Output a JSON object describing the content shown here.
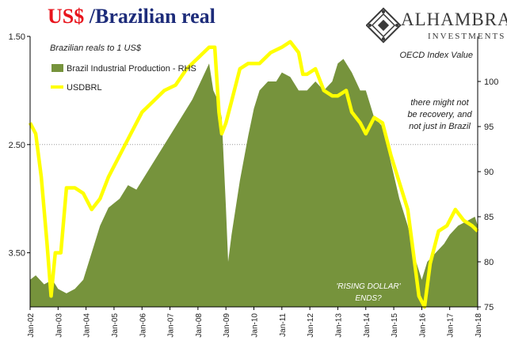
{
  "title": {
    "part1": "US$",
    "part2": " /Brazilian real"
  },
  "logo": {
    "name": "ALHAMBRA",
    "sub": "INVESTMENTS"
  },
  "chart_data": {
    "type": "area+line",
    "left_axis": {
      "label": "Brazilian reals to 1 US$",
      "inverted": true,
      "range": [
        1.5,
        4.0
      ],
      "ticks": [
        1.5,
        2.5,
        3.5
      ],
      "tick_labels": [
        "1.50",
        "2.50",
        "3.50"
      ]
    },
    "right_axis": {
      "label": "OECD Index Value",
      "range": [
        75,
        105
      ],
      "ticks": [
        75,
        80,
        85,
        90,
        95,
        100
      ],
      "tick_labels": [
        "75",
        "80",
        "85",
        "90",
        "95",
        "100"
      ]
    },
    "x_axis": {
      "range": [
        2002.0,
        2018.0
      ],
      "ticks": [
        2002,
        2003,
        2004,
        2005,
        2006,
        2007,
        2008,
        2009,
        2010,
        2011,
        2012,
        2013,
        2014,
        2015,
        2016,
        2017,
        2018
      ],
      "tick_labels": [
        "Jan-02",
        "Jan-03",
        "Jan-04",
        "Jan-05",
        "Jan-06",
        "Jan-07",
        "Jan-08",
        "Jan-09",
        "Jan-10",
        "Jan-11",
        "Jan-12",
        "Jan-13",
        "Jan-14",
        "Jan-15",
        "Jan-16",
        "Jan-17",
        "Jan-18"
      ]
    },
    "grid": "horizontal dotted at 2.50",
    "legend": {
      "position": "top-left",
      "entries": [
        "Brazil Industrial Production - RHS",
        "USDBRL"
      ]
    },
    "series": [
      {
        "name": "Brazil Industrial Production - RHS",
        "type": "area",
        "axis": "right",
        "color": "#76933c",
        "x": [
          2002.0,
          2002.2,
          2002.5,
          2002.8,
          2003.0,
          2003.3,
          2003.6,
          2003.9,
          2004.2,
          2004.5,
          2004.8,
          2005.2,
          2005.5,
          2005.8,
          2006.2,
          2006.6,
          2007.0,
          2007.4,
          2007.8,
          2008.1,
          2008.4,
          2008.55,
          2008.7,
          2008.85,
          2009.0,
          2009.08,
          2009.2,
          2009.5,
          2009.8,
          2010.0,
          2010.2,
          2010.5,
          2010.8,
          2011.0,
          2011.3,
          2011.6,
          2011.9,
          2012.2,
          2012.5,
          2012.8,
          2013.0,
          2013.2,
          2013.5,
          2013.8,
          2014.0,
          2014.3,
          2014.6,
          2014.9,
          2015.2,
          2015.5,
          2015.8,
          2016.0,
          2016.2,
          2016.5,
          2016.8,
          2017.0,
          2017.3,
          2017.6,
          2017.9,
          2018.0
        ],
        "values": [
          78,
          78.5,
          77.5,
          78,
          77,
          76.5,
          77,
          78,
          81,
          84,
          86,
          87,
          88.5,
          88,
          90,
          92,
          94,
          96,
          98,
          100,
          102,
          99,
          98,
          96,
          86,
          80,
          83,
          89,
          94,
          97,
          99,
          100,
          100,
          101,
          100.5,
          99,
          99,
          100,
          99,
          100,
          102,
          102.5,
          101,
          99,
          99,
          96,
          95,
          91,
          87,
          84,
          80,
          78,
          80,
          81,
          82,
          83,
          84,
          84.5,
          85,
          84
        ]
      },
      {
        "name": "USDBRL",
        "type": "line",
        "axis": "left",
        "color": "#ffff00",
        "x": [
          2002.0,
          2002.2,
          2002.4,
          2002.6,
          2002.75,
          2002.9,
          2003.1,
          2003.3,
          2003.6,
          2003.9,
          2004.2,
          2004.5,
          2004.8,
          2005.2,
          2005.6,
          2006.0,
          2006.4,
          2006.8,
          2007.2,
          2007.6,
          2008.0,
          2008.4,
          2008.6,
          2008.75,
          2008.85,
          2009.0,
          2009.2,
          2009.5,
          2009.8,
          2010.2,
          2010.6,
          2011.0,
          2011.3,
          2011.6,
          2011.75,
          2011.9,
          2012.2,
          2012.5,
          2012.8,
          2013.0,
          2013.3,
          2013.5,
          2013.8,
          2014.0,
          2014.3,
          2014.6,
          2014.9,
          2015.2,
          2015.5,
          2015.7,
          2015.9,
          2016.1,
          2016.3,
          2016.6,
          2016.9,
          2017.2,
          2017.5,
          2017.8,
          2018.0
        ],
        "values": [
          2.3,
          2.4,
          2.8,
          3.4,
          3.9,
          3.5,
          3.5,
          2.9,
          2.9,
          2.95,
          3.1,
          3.0,
          2.8,
          2.6,
          2.4,
          2.2,
          2.1,
          2.0,
          1.95,
          1.8,
          1.7,
          1.6,
          1.6,
          2.2,
          2.4,
          2.3,
          2.1,
          1.8,
          1.75,
          1.75,
          1.65,
          1.6,
          1.55,
          1.65,
          1.85,
          1.85,
          1.8,
          2.0,
          2.05,
          2.05,
          2.0,
          2.2,
          2.3,
          2.4,
          2.25,
          2.3,
          2.6,
          2.85,
          3.1,
          3.5,
          3.9,
          4.0,
          3.6,
          3.3,
          3.25,
          3.1,
          3.2,
          3.25,
          3.3
        ]
      }
    ],
    "annotations": [
      {
        "text": "there might not",
        "line": 1
      },
      {
        "text": "be recovery, and",
        "line": 2
      },
      {
        "text": "not just in Brazil",
        "line": 3
      },
      {
        "text": "'RISING DOLLAR'",
        "line": 4
      },
      {
        "text": "ENDS?",
        "line": 5
      }
    ]
  }
}
